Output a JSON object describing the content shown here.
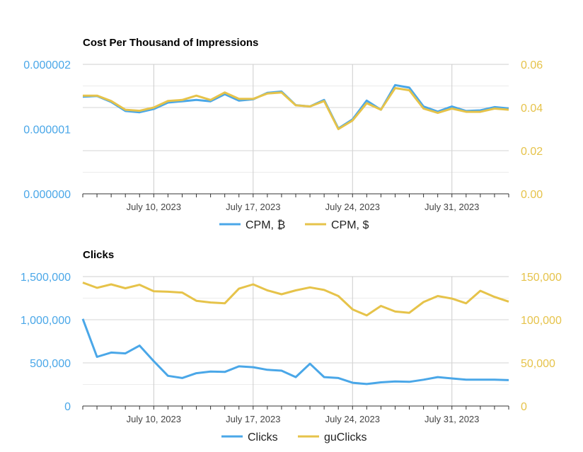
{
  "colors": {
    "blue": "#4aa7e8",
    "gold": "#e6c34a",
    "grid": "#e3e3e3",
    "vgrid": "#c8c8c8",
    "axis": "#333333",
    "label": "#444444"
  },
  "chart_data": [
    {
      "type": "line",
      "title": "Cost Per Thousand of Impressions",
      "x": [
        "2023-07-05",
        "2023-07-06",
        "2023-07-07",
        "2023-07-08",
        "2023-07-09",
        "2023-07-10",
        "2023-07-11",
        "2023-07-12",
        "2023-07-13",
        "2023-07-14",
        "2023-07-15",
        "2023-07-16",
        "2023-07-17",
        "2023-07-18",
        "2023-07-19",
        "2023-07-20",
        "2023-07-21",
        "2023-07-22",
        "2023-07-23",
        "2023-07-24",
        "2023-07-25",
        "2023-07-26",
        "2023-07-27",
        "2023-07-28",
        "2023-07-29",
        "2023-07-30",
        "2023-07-31",
        "2023-08-01",
        "2023-08-02",
        "2023-08-03",
        "2023-08-04"
      ],
      "x_tick_labels": [
        "July 10, 2023",
        "July 17, 2023",
        "July 24, 2023",
        "July 31, 2023"
      ],
      "left_axis": {
        "ticks": [
          "0.000002",
          "0.000001",
          "0.000000"
        ],
        "ylim": [
          0,
          2e-06
        ]
      },
      "right_axis": {
        "ticks": [
          "0.06",
          "0.04",
          "0.02",
          "0.00"
        ],
        "ylim": [
          0,
          0.06
        ]
      },
      "series": [
        {
          "name": "CPM, ₿",
          "axis": "left",
          "color": "#4aa7e8",
          "values": [
            1.5e-06,
            1.51e-06,
            1.42e-06,
            1.28e-06,
            1.26e-06,
            1.31e-06,
            1.41e-06,
            1.43e-06,
            1.45e-06,
            1.43e-06,
            1.54e-06,
            1.44e-06,
            1.46e-06,
            1.56e-06,
            1.58e-06,
            1.37e-06,
            1.35e-06,
            1.45e-06,
            1.01e-06,
            1.15e-06,
            1.44e-06,
            1.3e-06,
            1.68e-06,
            1.64e-06,
            1.35e-06,
            1.27e-06,
            1.35e-06,
            1.28e-06,
            1.29e-06,
            1.34e-06,
            1.32e-06
          ]
        },
        {
          "name": "CPM, $",
          "axis": "right",
          "color": "#e6c34a",
          "values": [
            0.0455,
            0.0455,
            0.043,
            0.039,
            0.0385,
            0.04,
            0.043,
            0.0435,
            0.0455,
            0.0435,
            0.047,
            0.044,
            0.044,
            0.0465,
            0.047,
            0.041,
            0.0405,
            0.043,
            0.03,
            0.034,
            0.042,
            0.039,
            0.049,
            0.048,
            0.0395,
            0.0375,
            0.0395,
            0.038,
            0.038,
            0.0395,
            0.039
          ]
        }
      ]
    },
    {
      "type": "line",
      "title": "Clicks",
      "x": [
        "2023-07-05",
        "2023-07-06",
        "2023-07-07",
        "2023-07-08",
        "2023-07-09",
        "2023-07-10",
        "2023-07-11",
        "2023-07-12",
        "2023-07-13",
        "2023-07-14",
        "2023-07-15",
        "2023-07-16",
        "2023-07-17",
        "2023-07-18",
        "2023-07-19",
        "2023-07-20",
        "2023-07-21",
        "2023-07-22",
        "2023-07-23",
        "2023-07-24",
        "2023-07-25",
        "2023-07-26",
        "2023-07-27",
        "2023-07-28",
        "2023-07-29",
        "2023-07-30",
        "2023-07-31",
        "2023-08-01",
        "2023-08-02",
        "2023-08-03",
        "2023-08-04"
      ],
      "x_tick_labels": [
        "July 10, 2023",
        "July 17, 2023",
        "July 24, 2023",
        "July 31, 2023"
      ],
      "left_axis": {
        "ticks": [
          "1,500,000",
          "1,000,000",
          "500,000",
          "0"
        ],
        "ylim": [
          0,
          1500000
        ]
      },
      "right_axis": {
        "ticks": [
          "150,000",
          "100,000",
          "50,000",
          "0"
        ],
        "ylim": [
          0,
          150000
        ]
      },
      "series": [
        {
          "name": "Clicks",
          "axis": "left",
          "color": "#4aa7e8",
          "values": [
            1010000,
            570000,
            620000,
            610000,
            700000,
            520000,
            350000,
            325000,
            380000,
            400000,
            395000,
            460000,
            450000,
            420000,
            410000,
            335000,
            490000,
            335000,
            325000,
            270000,
            255000,
            275000,
            285000,
            280000,
            305000,
            335000,
            320000,
            305000,
            305000,
            305000,
            300000
          ]
        },
        {
          "name": "guClicks",
          "axis": "right",
          "color": "#e6c34a",
          "values": [
            143000,
            137000,
            141000,
            136500,
            140500,
            133000,
            132500,
            131500,
            122000,
            120000,
            119000,
            136000,
            141000,
            134000,
            129500,
            134000,
            137500,
            134500,
            127500,
            112000,
            105000,
            116000,
            109500,
            108000,
            120500,
            127500,
            124500,
            119000,
            133500,
            126500,
            121000
          ]
        }
      ]
    }
  ]
}
